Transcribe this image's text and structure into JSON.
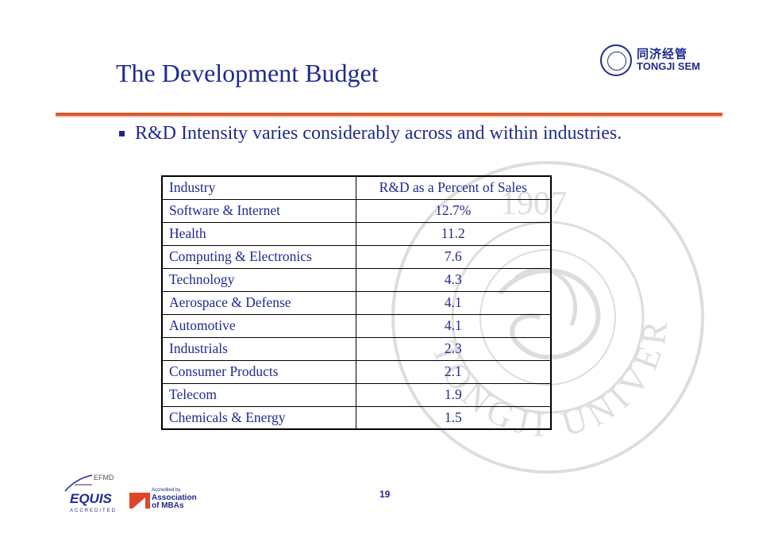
{
  "slide": {
    "title": "The Development Budget",
    "page_number": "19"
  },
  "logo": {
    "cn": "同济经管",
    "en": "TONGJI SEM"
  },
  "bullet": {
    "text": "R&D Intensity varies considerably across and within industries."
  },
  "table": {
    "headers": [
      "Industry",
      "R&D as a Percent of Sales"
    ],
    "rows": [
      [
        "Software & Internet",
        "12.7%"
      ],
      [
        "Health",
        "11.2"
      ],
      [
        "Computing & Electronics",
        "7.6"
      ],
      [
        "Technology",
        "4.3"
      ],
      [
        "Aerospace & Defense",
        "4.1"
      ],
      [
        "Automotive",
        "4.1"
      ],
      [
        "Industrials",
        "2.3"
      ],
      [
        "Consumer Products",
        "2.1"
      ],
      [
        "Telecom",
        "1.9"
      ],
      [
        "Chemicals & Energy",
        "1.5"
      ]
    ]
  },
  "footer": {
    "efmd": "EFMD",
    "equis": "EQUIS",
    "equis_accredited": "ACCREDITED",
    "amba_accredited_by": "Accredited by",
    "amba_line1": "Association",
    "amba_line2": "of MBAs"
  },
  "watermark": {
    "year": "1907",
    "arc_text": "TONGJI UNIVERSITY"
  },
  "colors": {
    "title_blue": "#1f2b8f",
    "rule_orange": "#d9572b",
    "amba_red": "#e0442b"
  }
}
